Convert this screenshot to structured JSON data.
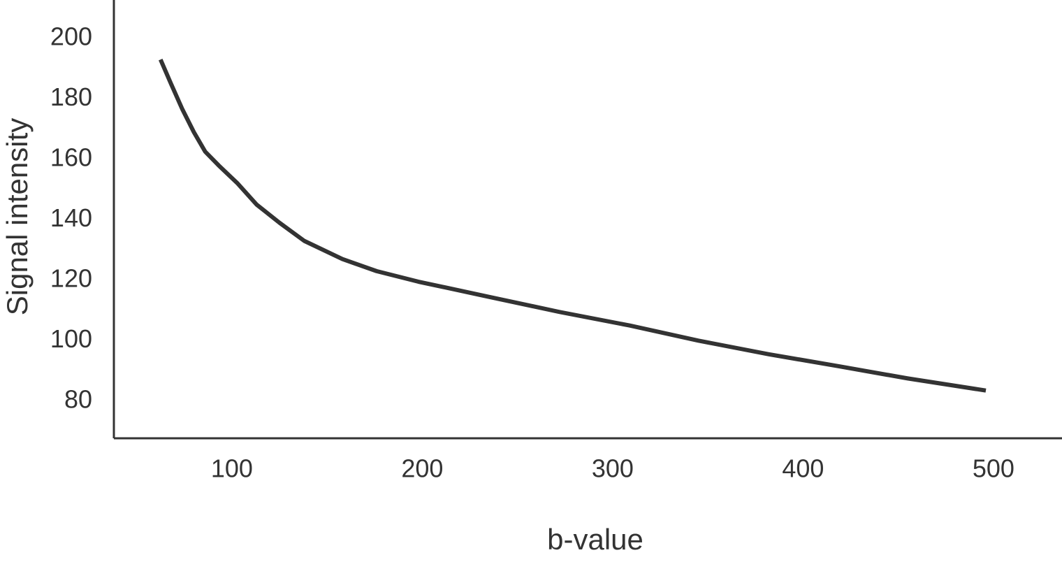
{
  "chart_data": {
    "type": "line",
    "x_label": "b-value",
    "y_label": "Signal intensity",
    "x": [
      62.5,
      68,
      74,
      80,
      86,
      93,
      103,
      113,
      125,
      138,
      158,
      176,
      198,
      235,
      272,
      309,
      345,
      382,
      419,
      455,
      496
    ],
    "series": [
      {
        "name": "Signal intensity",
        "color": "#333333",
        "values": [
          193,
          185,
          176.5,
          169,
          162.5,
          158,
          152,
          145,
          139,
          133,
          127,
          123,
          119.5,
          114.5,
          109.5,
          105,
          100,
          95.5,
          91.5,
          87.5,
          83.5
        ]
      }
    ],
    "xlim": [
      38,
      536
    ],
    "ylim": [
      67.7,
      212.7
    ],
    "xticks": [
      100,
      200,
      300,
      400,
      500
    ],
    "yticks": [
      80,
      100,
      120,
      140,
      160,
      180,
      200
    ],
    "grid": false
  }
}
